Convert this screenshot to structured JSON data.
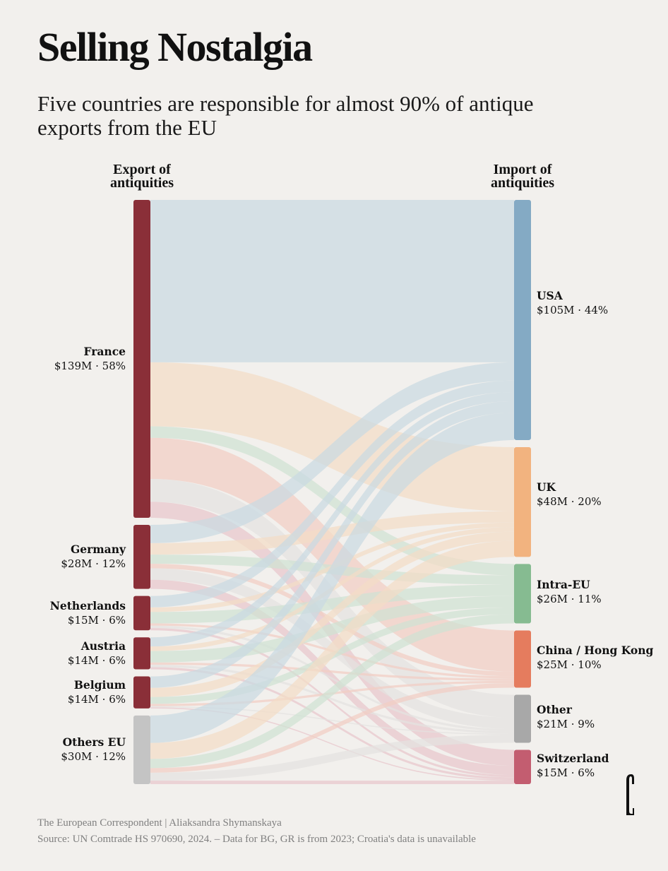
{
  "title": "Selling Nostalgia",
  "subtitle": "Five countries are responsible for almost 90% of antique exports from the EU",
  "footer": {
    "credit": "The European Correspondent | Aliaksandra Shymanskaya",
    "source": "Source: UN Comtrade HS 970690, 2024. – Data for BG, GR is from 2023; Croatia's data is unavailable"
  },
  "logo_icon": "european-correspondent-logo",
  "chart_data": {
    "type": "sankey",
    "title": "Selling Nostalgia",
    "units": "USD millions",
    "left_header": "Export of antiquities",
    "right_header": "Import of antiquities",
    "sources": [
      {
        "name": "France",
        "value": 139,
        "share": "58%",
        "label": "$139M · 58%",
        "color": "#8a2f38"
      },
      {
        "name": "Germany",
        "value": 28,
        "share": "12%",
        "label": "$28M · 12%",
        "color": "#8a2f38"
      },
      {
        "name": "Netherlands",
        "value": 15,
        "share": "6%",
        "label": "$15M · 6%",
        "color": "#8a2f38"
      },
      {
        "name": "Austria",
        "value": 14,
        "share": "6%",
        "label": "$14M · 6%",
        "color": "#8a2f38"
      },
      {
        "name": "Belgium",
        "value": 14,
        "share": "6%",
        "label": "$14M · 6%",
        "color": "#8a2f38"
      },
      {
        "name": "Others EU",
        "value": 30,
        "share": "12%",
        "label": "$30M · 12%",
        "color": "#c4c4c4"
      }
    ],
    "targets": [
      {
        "name": "USA",
        "value": 105,
        "share": "44%",
        "label": "$105M · 44%",
        "color": "#84aac4",
        "flow_color": "#c9d9e2"
      },
      {
        "name": "UK",
        "value": 48,
        "share": "20%",
        "label": "$48M · 20%",
        "color": "#f2b37f",
        "flow_color": "#f3dcc6"
      },
      {
        "name": "Intra-EU",
        "value": 26,
        "share": "11%",
        "label": "$26M · 11%",
        "color": "#86bb91",
        "flow_color": "#cfe2d2"
      },
      {
        "name": "China / Hong Kong",
        "value": 25,
        "share": "10%",
        "label": "$25M · 10%",
        "color": "#e57c5e",
        "flow_color": "#f1cdc4"
      },
      {
        "name": "Other",
        "value": 21,
        "share": "9%",
        "label": "$21M · 9%",
        "color": "#a8a8a8",
        "flow_color": "#e3e2e0"
      },
      {
        "name": "Switzerland",
        "value": 15,
        "share": "6%",
        "label": "$15M · 6%",
        "color": "#c35d70",
        "flow_color": "#e8c6cc"
      }
    ],
    "flows": [
      {
        "source": "France",
        "target": "USA",
        "value": 71
      },
      {
        "source": "France",
        "target": "UK",
        "value": 28
      },
      {
        "source": "France",
        "target": "Intra-EU",
        "value": 5
      },
      {
        "source": "France",
        "target": "China / Hong Kong",
        "value": 18
      },
      {
        "source": "France",
        "target": "Other",
        "value": 10
      },
      {
        "source": "France",
        "target": "Switzerland",
        "value": 7
      },
      {
        "source": "Germany",
        "target": "USA",
        "value": 8
      },
      {
        "source": "Germany",
        "target": "UK",
        "value": 5
      },
      {
        "source": "Germany",
        "target": "Intra-EU",
        "value": 4
      },
      {
        "source": "Germany",
        "target": "China / Hong Kong",
        "value": 2
      },
      {
        "source": "Germany",
        "target": "Other",
        "value": 5
      },
      {
        "source": "Germany",
        "target": "Switzerland",
        "value": 4
      },
      {
        "source": "Netherlands",
        "target": "USA",
        "value": 5
      },
      {
        "source": "Netherlands",
        "target": "UK",
        "value": 2
      },
      {
        "source": "Netherlands",
        "target": "Intra-EU",
        "value": 5
      },
      {
        "source": "Netherlands",
        "target": "China / Hong Kong",
        "value": 1
      },
      {
        "source": "Netherlands",
        "target": "Other",
        "value": 1
      },
      {
        "source": "Netherlands",
        "target": "Switzerland",
        "value": 1
      },
      {
        "source": "Austria",
        "target": "USA",
        "value": 4
      },
      {
        "source": "Austria",
        "target": "UK",
        "value": 2
      },
      {
        "source": "Austria",
        "target": "Intra-EU",
        "value": 5
      },
      {
        "source": "Austria",
        "target": "China / Hong Kong",
        "value": 1
      },
      {
        "source": "Austria",
        "target": "Other",
        "value": 1
      },
      {
        "source": "Austria",
        "target": "Switzerland",
        "value": 1
      },
      {
        "source": "Belgium",
        "target": "USA",
        "value": 5
      },
      {
        "source": "Belgium",
        "target": "UK",
        "value": 4
      },
      {
        "source": "Belgium",
        "target": "Intra-EU",
        "value": 3
      },
      {
        "source": "Belgium",
        "target": "China / Hong Kong",
        "value": 1
      },
      {
        "source": "Belgium",
        "target": "Other",
        "value": 0.5
      },
      {
        "source": "Belgium",
        "target": "Switzerland",
        "value": 0.5
      },
      {
        "source": "Others EU",
        "target": "USA",
        "value": 12
      },
      {
        "source": "Others EU",
        "target": "UK",
        "value": 7
      },
      {
        "source": "Others EU",
        "target": "Intra-EU",
        "value": 4
      },
      {
        "source": "Others EU",
        "target": "China / Hong Kong",
        "value": 2
      },
      {
        "source": "Others EU",
        "target": "Other",
        "value": 3.5
      },
      {
        "source": "Others EU",
        "target": "Switzerland",
        "value": 1.5
      }
    ]
  }
}
